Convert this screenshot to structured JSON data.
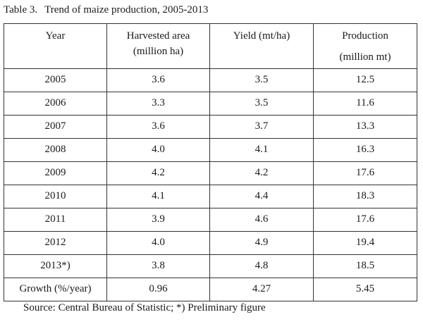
{
  "caption": {
    "label": "Table 3.",
    "title": "Trend of maize production, 2005-2013"
  },
  "table": {
    "headers": {
      "year": "Year",
      "area_line1": "Harvested area",
      "area_line2": "(million ha)",
      "yield": "Yield (mt/ha)",
      "production_line1": "Production",
      "production_line2": "(million mt)"
    },
    "rows": [
      {
        "year": "2005",
        "area": "3.6",
        "yield": "3.5",
        "production": "12.5"
      },
      {
        "year": "2006",
        "area": "3.3",
        "yield": "3.5",
        "production": "11.6"
      },
      {
        "year": "2007",
        "area": "3.6",
        "yield": "3.7",
        "production": "13.3"
      },
      {
        "year": "2008",
        "area": "4.0",
        "yield": "4.1",
        "production": "16.3"
      },
      {
        "year": "2009",
        "area": "4.2",
        "yield": "4.2",
        "production": "17.6"
      },
      {
        "year": "2010",
        "area": "4.1",
        "yield": "4.4",
        "production": "18.3"
      },
      {
        "year": "2011",
        "area": "3.9",
        "yield": "4.6",
        "production": "17.6"
      },
      {
        "year": "2012",
        "area": "4.0",
        "yield": "4.9",
        "production": "19.4"
      },
      {
        "year": "2013*)",
        "area": "3.8",
        "yield": "4.8",
        "production": "18.5"
      },
      {
        "year": "Growth (%/year)",
        "area": "0.96",
        "yield": "4.27",
        "production": "5.45"
      }
    ]
  },
  "source": "Source: Central Bureau of Statistic; *) Preliminary figure"
}
